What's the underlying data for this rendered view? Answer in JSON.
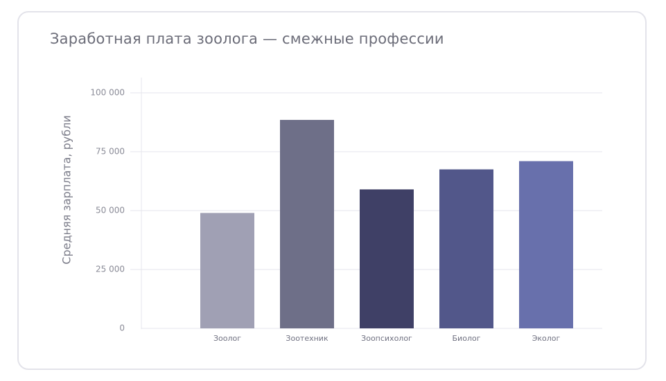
{
  "chart_data": {
    "type": "bar",
    "title": "Заработная плата зоолога — смежные профессии",
    "xlabel": "",
    "ylabel": "Средняя зарплата, рубли",
    "categories": [
      "Зоолог",
      "Зоотехник",
      "Зоопсихолог",
      "Биолог",
      "Эколог"
    ],
    "values": [
      49000,
      88500,
      59000,
      67500,
      71000
    ],
    "bar_colors": [
      "#a0a0b4",
      "#6e6f88",
      "#3f4066",
      "#52578a",
      "#6870ac"
    ],
    "ylim": [
      0,
      100000
    ],
    "yticks": [
      0,
      25000,
      50000,
      75000,
      100000
    ],
    "ytick_labels": [
      "0",
      "25 000",
      "50 000",
      "75 000",
      "100 000"
    ],
    "grid": true,
    "gridline_color": "#e6e6ec",
    "legend": "none"
  }
}
